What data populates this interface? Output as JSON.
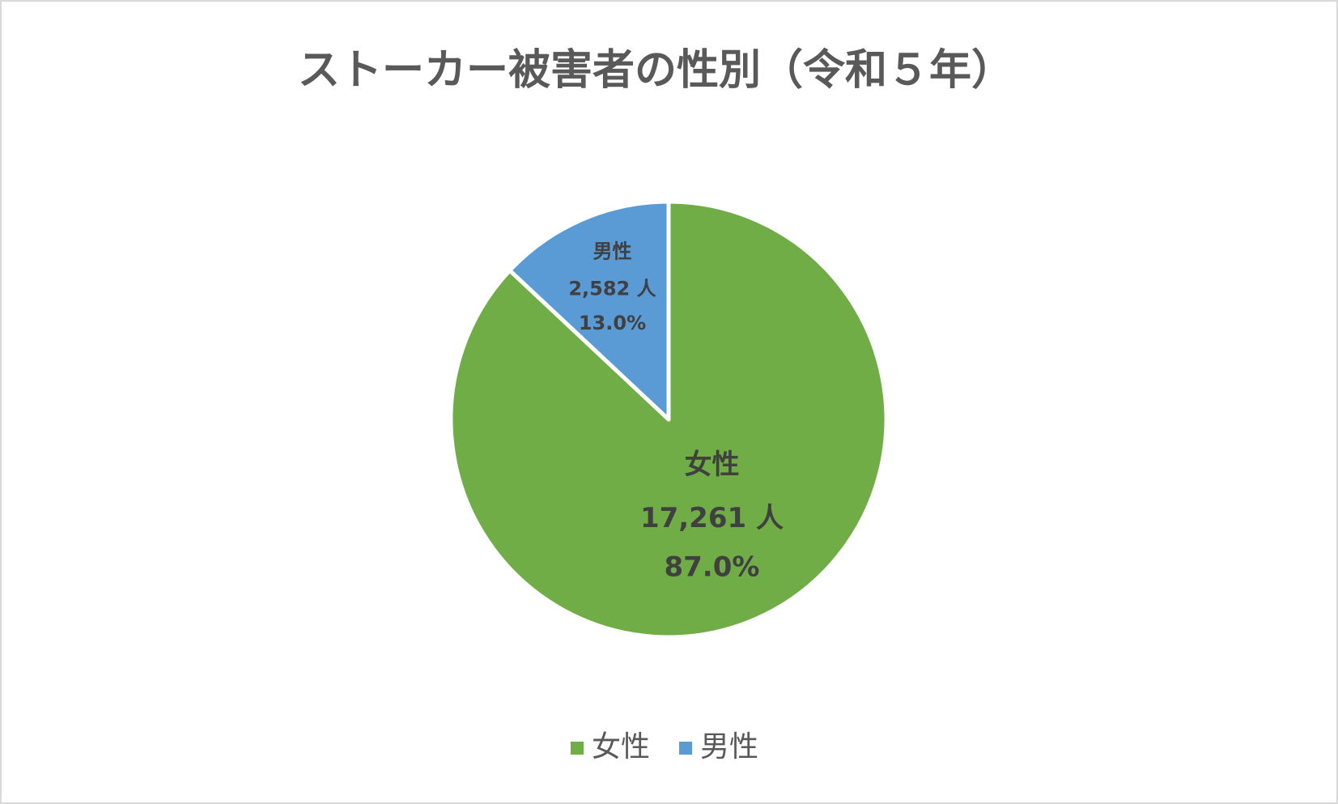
{
  "chart_data": {
    "type": "pie",
    "title": "ストーカー被害者の性別（令和５年）",
    "categories": [
      "女性",
      "男性"
    ],
    "values": [
      17261,
      2582
    ],
    "value_labels": [
      "17,261 人",
      "2,582 人"
    ],
    "percentages": [
      87.0,
      13.0
    ],
    "percentage_labels": [
      "87.0%",
      "13.0%"
    ],
    "colors": [
      "#70ad47",
      "#5b9bd5"
    ],
    "legend": "bottom"
  }
}
